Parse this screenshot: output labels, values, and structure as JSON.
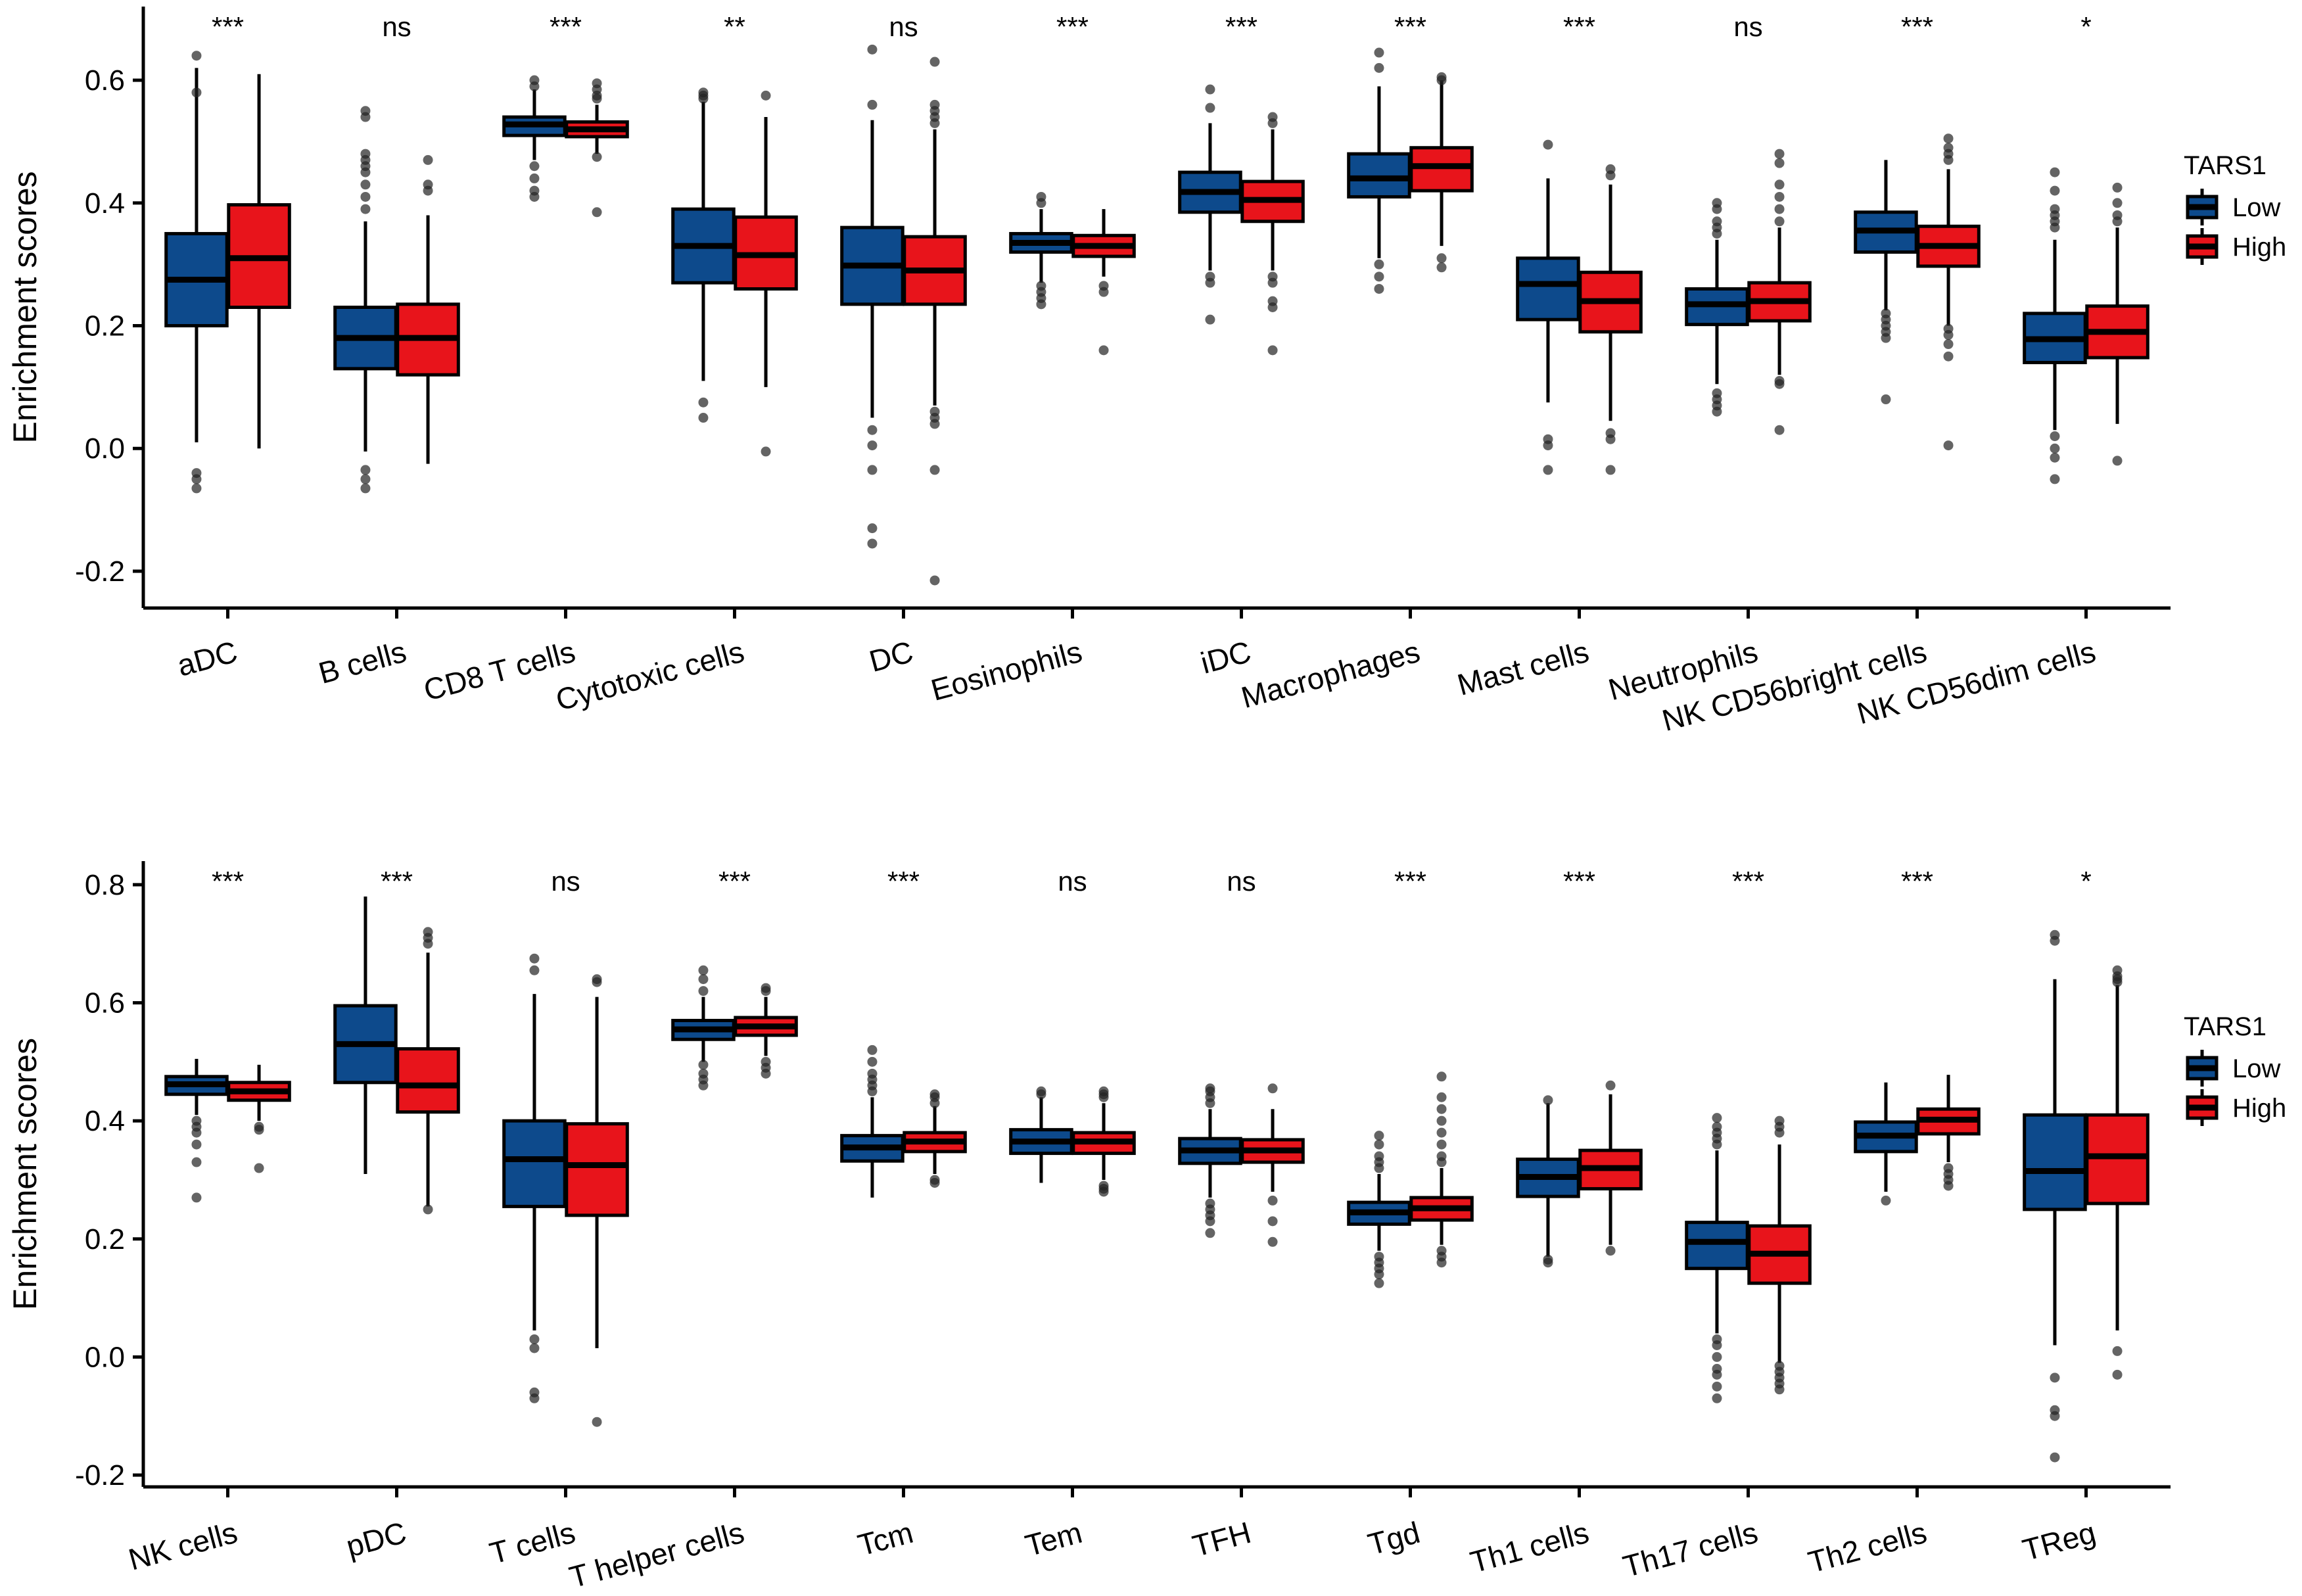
{
  "colors": {
    "low": "#0d4a8c",
    "high": "#e8141b"
  },
  "chart_data": [
    {
      "type": "box",
      "ylabel": "Enrichment scores",
      "ylim": [
        -0.26,
        0.72
      ],
      "yticks": [
        -0.2,
        0.0,
        0.2,
        0.4,
        0.6
      ],
      "ytick_labels": [
        "-0.2",
        "0.0",
        "0.2",
        "0.4",
        "0.6"
      ],
      "legend": {
        "title": "TARS1",
        "items": [
          "Low",
          "High"
        ]
      },
      "categories": [
        {
          "label": "aDC",
          "sig": "***",
          "low": {
            "q1": 0.2,
            "med": 0.275,
            "q3": 0.35,
            "wl": 0.01,
            "wh": 0.62,
            "out": [
              0.64,
              0.58,
              -0.04,
              -0.05,
              -0.065
            ]
          },
          "high": {
            "q1": 0.23,
            "med": 0.31,
            "q3": 0.397,
            "wl": 0.0,
            "wh": 0.61,
            "out": []
          }
        },
        {
          "label": "B cells",
          "sig": "ns",
          "low": {
            "q1": 0.13,
            "med": 0.18,
            "q3": 0.23,
            "wl": -0.005,
            "wh": 0.37,
            "out": [
              0.55,
              0.54,
              0.48,
              0.47,
              0.46,
              0.45,
              0.43,
              0.41,
              0.39,
              -0.035,
              -0.05,
              -0.065
            ]
          },
          "high": {
            "q1": 0.12,
            "med": 0.18,
            "q3": 0.235,
            "wl": -0.025,
            "wh": 0.38,
            "out": [
              0.47,
              0.43,
              0.42
            ]
          }
        },
        {
          "label": "CD8 T cells",
          "sig": "***",
          "low": {
            "q1": 0.51,
            "med": 0.528,
            "q3": 0.54,
            "wl": 0.47,
            "wh": 0.585,
            "out": [
              0.6,
              0.59,
              0.46,
              0.44,
              0.42,
              0.41
            ]
          },
          "high": {
            "q1": 0.508,
            "med": 0.52,
            "q3": 0.532,
            "wl": 0.48,
            "wh": 0.56,
            "out": [
              0.595,
              0.585,
              0.575,
              0.57,
              0.475,
              0.385
            ]
          }
        },
        {
          "label": "Cytotoxic cells",
          "sig": "**",
          "low": {
            "q1": 0.27,
            "med": 0.33,
            "q3": 0.39,
            "wl": 0.11,
            "wh": 0.565,
            "out": [
              0.58,
              0.575,
              0.57,
              0.075,
              0.05
            ]
          },
          "high": {
            "q1": 0.26,
            "med": 0.315,
            "q3": 0.377,
            "wl": 0.1,
            "wh": 0.54,
            "out": [
              0.575,
              -0.005
            ]
          }
        },
        {
          "label": "DC",
          "sig": "ns",
          "low": {
            "q1": 0.235,
            "med": 0.298,
            "q3": 0.36,
            "wl": 0.05,
            "wh": 0.535,
            "out": [
              0.65,
              0.56,
              0.03,
              0.005,
              -0.035,
              -0.13,
              -0.155
            ]
          },
          "high": {
            "q1": 0.235,
            "med": 0.29,
            "q3": 0.345,
            "wl": 0.07,
            "wh": 0.52,
            "out": [
              0.63,
              0.56,
              0.55,
              0.54,
              0.53,
              0.06,
              0.05,
              0.04,
              -0.035,
              -0.215
            ]
          }
        },
        {
          "label": "Eosinophils",
          "sig": "***",
          "low": {
            "q1": 0.32,
            "med": 0.335,
            "q3": 0.35,
            "wl": 0.27,
            "wh": 0.39,
            "out": [
              0.41,
              0.4,
              0.265,
              0.255,
              0.245,
              0.235
            ]
          },
          "high": {
            "q1": 0.313,
            "med": 0.33,
            "q3": 0.347,
            "wl": 0.28,
            "wh": 0.39,
            "out": [
              0.265,
              0.255,
              0.16
            ]
          }
        },
        {
          "label": "iDC",
          "sig": "***",
          "low": {
            "q1": 0.385,
            "med": 0.418,
            "q3": 0.45,
            "wl": 0.29,
            "wh": 0.53,
            "out": [
              0.585,
              0.555,
              0.28,
              0.27,
              0.21
            ]
          },
          "high": {
            "q1": 0.37,
            "med": 0.405,
            "q3": 0.435,
            "wl": 0.29,
            "wh": 0.52,
            "out": [
              0.54,
              0.53,
              0.28,
              0.27,
              0.24,
              0.23,
              0.16
            ]
          }
        },
        {
          "label": "Macrophages",
          "sig": "***",
          "low": {
            "q1": 0.41,
            "med": 0.44,
            "q3": 0.48,
            "wl": 0.31,
            "wh": 0.59,
            "out": [
              0.645,
              0.62,
              0.3,
              0.28,
              0.26
            ]
          },
          "high": {
            "q1": 0.42,
            "med": 0.46,
            "q3": 0.49,
            "wl": 0.33,
            "wh": 0.6,
            "out": [
              0.605,
              0.6,
              0.31,
              0.295
            ]
          }
        },
        {
          "label": "Mast cells",
          "sig": "***",
          "low": {
            "q1": 0.21,
            "med": 0.268,
            "q3": 0.31,
            "wl": 0.075,
            "wh": 0.44,
            "out": [
              0.495,
              0.015,
              0.005,
              -0.035
            ]
          },
          "high": {
            "q1": 0.19,
            "med": 0.24,
            "q3": 0.287,
            "wl": 0.045,
            "wh": 0.43,
            "out": [
              0.455,
              0.445,
              0.025,
              0.015,
              -0.035
            ]
          }
        },
        {
          "label": "Neutrophils",
          "sig": "ns",
          "low": {
            "q1": 0.202,
            "med": 0.235,
            "q3": 0.26,
            "wl": 0.105,
            "wh": 0.34,
            "out": [
              0.4,
              0.39,
              0.37,
              0.36,
              0.35,
              0.09,
              0.08,
              0.07,
              0.06
            ]
          },
          "high": {
            "q1": 0.208,
            "med": 0.24,
            "q3": 0.27,
            "wl": 0.12,
            "wh": 0.36,
            "out": [
              0.48,
              0.465,
              0.43,
              0.41,
              0.39,
              0.37,
              0.11,
              0.105,
              0.03
            ]
          }
        },
        {
          "label": "NK CD56bright cells",
          "sig": "***",
          "low": {
            "q1": 0.32,
            "med": 0.355,
            "q3": 0.385,
            "wl": 0.225,
            "wh": 0.47,
            "out": [
              0.22,
              0.21,
              0.2,
              0.19,
              0.18,
              0.08
            ]
          },
          "high": {
            "q1": 0.297,
            "med": 0.33,
            "q3": 0.362,
            "wl": 0.2,
            "wh": 0.455,
            "out": [
              0.505,
              0.49,
              0.48,
              0.47,
              0.195,
              0.185,
              0.17,
              0.15,
              0.005
            ]
          }
        },
        {
          "label": "NK CD56dim cells",
          "sig": "*",
          "low": {
            "q1": 0.14,
            "med": 0.178,
            "q3": 0.22,
            "wl": 0.03,
            "wh": 0.34,
            "out": [
              0.45,
              0.42,
              0.39,
              0.38,
              0.37,
              0.36,
              0.02,
              0.0,
              -0.015,
              -0.05
            ]
          },
          "high": {
            "q1": 0.148,
            "med": 0.19,
            "q3": 0.232,
            "wl": 0.04,
            "wh": 0.36,
            "out": [
              0.425,
              0.4,
              0.38,
              0.37,
              -0.02
            ]
          }
        }
      ]
    },
    {
      "type": "box",
      "ylabel": "Enrichment scores",
      "ylim": [
        -0.22,
        0.84
      ],
      "yticks": [
        -0.2,
        0.0,
        0.2,
        0.4,
        0.6,
        0.8
      ],
      "ytick_labels": [
        "-0.2",
        "0.0",
        "0.2",
        "0.4",
        "0.6",
        "0.8"
      ],
      "legend": {
        "title": "TARS1",
        "items": [
          "Low",
          "High"
        ]
      },
      "categories": [
        {
          "label": "NK cells",
          "sig": "***",
          "low": {
            "q1": 0.445,
            "med": 0.462,
            "q3": 0.475,
            "wl": 0.41,
            "wh": 0.505,
            "out": [
              0.4,
              0.39,
              0.38,
              0.36,
              0.33,
              0.27
            ]
          },
          "high": {
            "q1": 0.435,
            "med": 0.45,
            "q3": 0.465,
            "wl": 0.4,
            "wh": 0.495,
            "out": [
              0.39,
              0.385,
              0.32
            ]
          }
        },
        {
          "label": "pDC",
          "sig": "***",
          "low": {
            "q1": 0.465,
            "med": 0.53,
            "q3": 0.595,
            "wl": 0.31,
            "wh": 0.78,
            "out": []
          },
          "high": {
            "q1": 0.415,
            "med": 0.46,
            "q3": 0.522,
            "wl": 0.255,
            "wh": 0.685,
            "out": [
              0.72,
              0.71,
              0.7,
              0.25
            ]
          }
        },
        {
          "label": "T cells",
          "sig": "ns",
          "low": {
            "q1": 0.255,
            "med": 0.335,
            "q3": 0.4,
            "wl": 0.045,
            "wh": 0.615,
            "out": [
              0.675,
              0.655,
              0.03,
              0.015,
              -0.06,
              -0.07
            ]
          },
          "high": {
            "q1": 0.24,
            "med": 0.325,
            "q3": 0.395,
            "wl": 0.015,
            "wh": 0.61,
            "out": [
              0.64,
              0.635,
              -0.11
            ]
          }
        },
        {
          "label": "T helper cells",
          "sig": "***",
          "low": {
            "q1": 0.538,
            "med": 0.555,
            "q3": 0.57,
            "wl": 0.5,
            "wh": 0.61,
            "out": [
              0.655,
              0.64,
              0.62,
              0.495,
              0.48,
              0.47,
              0.46
            ]
          },
          "high": {
            "q1": 0.545,
            "med": 0.56,
            "q3": 0.575,
            "wl": 0.51,
            "wh": 0.61,
            "out": [
              0.625,
              0.62,
              0.5,
              0.49,
              0.48
            ]
          }
        },
        {
          "label": "Tcm",
          "sig": "***",
          "low": {
            "q1": 0.332,
            "med": 0.355,
            "q3": 0.375,
            "wl": 0.27,
            "wh": 0.44,
            "out": [
              0.52,
              0.5,
              0.48,
              0.47,
              0.46,
              0.45
            ]
          },
          "high": {
            "q1": 0.348,
            "med": 0.365,
            "q3": 0.38,
            "wl": 0.31,
            "wh": 0.425,
            "out": [
              0.445,
              0.44,
              0.43,
              0.3,
              0.295
            ]
          }
        },
        {
          "label": "Tem",
          "sig": "ns",
          "low": {
            "q1": 0.345,
            "med": 0.365,
            "q3": 0.385,
            "wl": 0.295,
            "wh": 0.44,
            "out": [
              0.45,
              0.445
            ]
          },
          "high": {
            "q1": 0.345,
            "med": 0.365,
            "q3": 0.38,
            "wl": 0.3,
            "wh": 0.43,
            "out": [
              0.45,
              0.445,
              0.44,
              0.29,
              0.285,
              0.28
            ]
          }
        },
        {
          "label": "TFH",
          "sig": "ns",
          "low": {
            "q1": 0.328,
            "med": 0.35,
            "q3": 0.37,
            "wl": 0.27,
            "wh": 0.42,
            "out": [
              0.455,
              0.45,
              0.44,
              0.43,
              0.26,
              0.25,
              0.24,
              0.23,
              0.21
            ]
          },
          "high": {
            "q1": 0.33,
            "med": 0.35,
            "q3": 0.368,
            "wl": 0.28,
            "wh": 0.42,
            "out": [
              0.455,
              0.265,
              0.23,
              0.195
            ]
          }
        },
        {
          "label": "Tgd",
          "sig": "***",
          "low": {
            "q1": 0.225,
            "med": 0.245,
            "q3": 0.262,
            "wl": 0.18,
            "wh": 0.31,
            "out": [
              0.375,
              0.36,
              0.34,
              0.33,
              0.32,
              0.17,
              0.16,
              0.15,
              0.14,
              0.125
            ]
          },
          "high": {
            "q1": 0.232,
            "med": 0.252,
            "q3": 0.27,
            "wl": 0.19,
            "wh": 0.32,
            "out": [
              0.475,
              0.44,
              0.42,
              0.4,
              0.38,
              0.36,
              0.34,
              0.33,
              0.18,
              0.17,
              0.16
            ]
          }
        },
        {
          "label": "Th1 cells",
          "sig": "***",
          "low": {
            "q1": 0.272,
            "med": 0.305,
            "q3": 0.335,
            "wl": 0.17,
            "wh": 0.43,
            "out": [
              0.435,
              0.165,
              0.16
            ]
          },
          "high": {
            "q1": 0.285,
            "med": 0.32,
            "q3": 0.35,
            "wl": 0.19,
            "wh": 0.445,
            "out": [
              0.46,
              0.18
            ]
          }
        },
        {
          "label": "Th17 cells",
          "sig": "***",
          "low": {
            "q1": 0.15,
            "med": 0.195,
            "q3": 0.228,
            "wl": 0.04,
            "wh": 0.35,
            "out": [
              0.405,
              0.39,
              0.38,
              0.37,
              0.36,
              0.03,
              0.02,
              0.0,
              -0.02,
              -0.03,
              -0.05,
              -0.07
            ]
          },
          "high": {
            "q1": 0.125,
            "med": 0.175,
            "q3": 0.222,
            "wl": -0.01,
            "wh": 0.36,
            "out": [
              0.4,
              0.39,
              0.38,
              -0.015,
              -0.025,
              -0.035,
              -0.045,
              -0.055
            ]
          }
        },
        {
          "label": "Th2 cells",
          "sig": "***",
          "low": {
            "q1": 0.348,
            "med": 0.375,
            "q3": 0.398,
            "wl": 0.28,
            "wh": 0.465,
            "out": [
              0.265
            ]
          },
          "high": {
            "q1": 0.378,
            "med": 0.402,
            "q3": 0.42,
            "wl": 0.33,
            "wh": 0.478,
            "out": [
              0.32,
              0.31,
              0.3,
              0.29
            ]
          }
        },
        {
          "label": "TReg",
          "sig": "*",
          "low": {
            "q1": 0.25,
            "med": 0.315,
            "q3": 0.41,
            "wl": 0.02,
            "wh": 0.64,
            "out": [
              0.715,
              0.705,
              -0.035,
              -0.09,
              -0.1,
              -0.17
            ]
          },
          "high": {
            "q1": 0.26,
            "med": 0.34,
            "q3": 0.41,
            "wl": 0.045,
            "wh": 0.63,
            "out": [
              0.655,
              0.645,
              0.64,
              0.635,
              0.01,
              -0.03
            ]
          }
        }
      ]
    }
  ]
}
